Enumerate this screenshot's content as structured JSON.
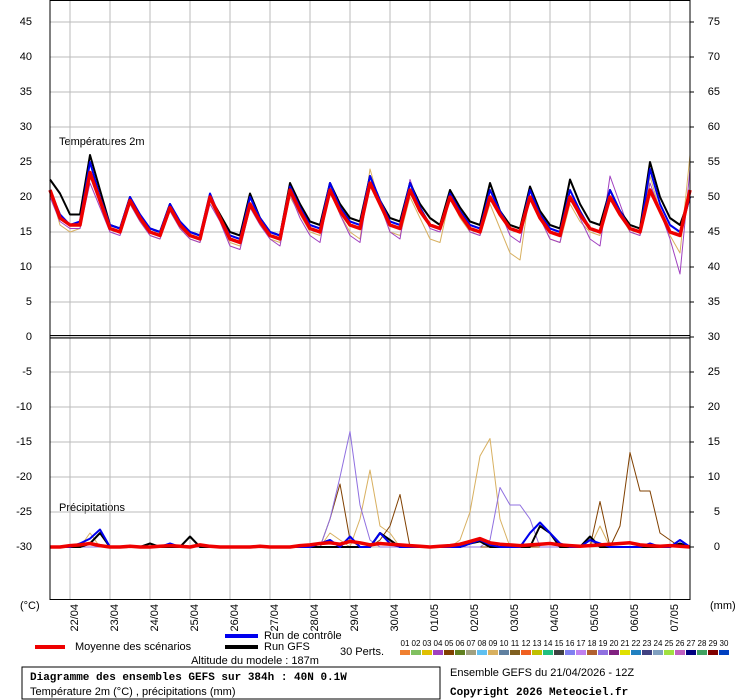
{
  "chart_data": [
    {
      "type": "line",
      "title": "Températures 2m",
      "ylabel": "(°C)",
      "xlim": [
        0,
        384
      ],
      "xticks": [
        {
          "value": 12,
          "label": "22/04"
        },
        {
          "value": 36,
          "label": "23/04"
        },
        {
          "value": 60,
          "label": "24/04"
        },
        {
          "value": 84,
          "label": "25/04"
        },
        {
          "value": 108,
          "label": "26/04"
        },
        {
          "value": 132,
          "label": "27/04"
        },
        {
          "value": 156,
          "label": "28/04"
        },
        {
          "value": 180,
          "label": "29/04"
        },
        {
          "value": 204,
          "label": "30/04"
        },
        {
          "value": 228,
          "label": "01/05"
        },
        {
          "value": 252,
          "label": "02/05"
        },
        {
          "value": 276,
          "label": "03/05"
        },
        {
          "value": 300,
          "label": "04/05"
        },
        {
          "value": 324,
          "label": "05/05"
        },
        {
          "value": 348,
          "label": "06/05"
        },
        {
          "value": 372,
          "label": "07/05"
        }
      ],
      "ylim": [
        0,
        48
      ],
      "yticks": [
        5,
        10,
        15,
        20,
        25,
        30,
        35,
        40,
        45
      ],
      "y2lim": [
        30,
        78
      ],
      "y2ticks": [
        35,
        40,
        45,
        50,
        55,
        60,
        65,
        70,
        75
      ],
      "grid": true,
      "x": [
        0,
        6,
        12,
        18,
        24,
        30,
        36,
        42,
        48,
        54,
        60,
        66,
        72,
        78,
        84,
        90,
        96,
        102,
        108,
        114,
        120,
        126,
        132,
        138,
        144,
        150,
        156,
        162,
        168,
        174,
        180,
        186,
        192,
        198,
        204,
        210,
        216,
        222,
        228,
        234,
        240,
        246,
        252,
        258,
        264,
        270,
        276,
        282,
        288,
        294,
        300,
        306,
        312,
        318,
        324,
        330,
        336,
        342,
        348,
        354,
        360,
        366,
        372,
        378,
        384
      ],
      "series": [
        {
          "name": "Moyenne des scénarios",
          "color": "#ee0000",
          "values": [
            21,
            17,
            16,
            16,
            23.5,
            19.5,
            15.5,
            15,
            19.5,
            17,
            15,
            14.5,
            18.5,
            16,
            14.5,
            14,
            20,
            17,
            14,
            13.5,
            19,
            16.5,
            14.5,
            14,
            21,
            18,
            15.5,
            15,
            21,
            18,
            16,
            15.5,
            22,
            19,
            16,
            15.5,
            21,
            18,
            16,
            15.5,
            20,
            17.5,
            15.5,
            15,
            20,
            17.5,
            15.5,
            15,
            20,
            17,
            15,
            14.5,
            20,
            17.5,
            15.5,
            15,
            20,
            17.5,
            15.5,
            15,
            21,
            18,
            15,
            14.5,
            21
          ]
        },
        {
          "name": "Run de contrôle",
          "color": "#0000ee",
          "values": [
            21,
            17.5,
            16,
            16.5,
            25,
            20,
            16,
            15.5,
            20,
            17.5,
            15.5,
            15,
            19,
            16.5,
            15,
            14.5,
            20.5,
            17,
            14.5,
            14,
            20,
            17,
            15,
            14.5,
            21.5,
            18.5,
            16,
            15.5,
            22,
            18.5,
            16.5,
            16,
            23,
            19.5,
            16.5,
            16,
            22,
            18.5,
            16,
            15.5,
            20.5,
            18,
            16,
            15.5,
            21,
            18,
            15.5,
            15,
            21,
            17.5,
            15.5,
            15,
            21,
            18,
            15.5,
            15,
            21,
            18,
            15.5,
            15,
            24,
            19,
            16,
            15,
            20
          ]
        },
        {
          "name": "Run GFS",
          "color": "#000000",
          "values": [
            22.5,
            20.5,
            17.5,
            17.5,
            26,
            21,
            16,
            15.5,
            20,
            17,
            15.5,
            15,
            19,
            16,
            15,
            14.5,
            20,
            17.5,
            15,
            14.5,
            20.5,
            17,
            15,
            14.5,
            22,
            19,
            16.5,
            16,
            22,
            19,
            17,
            16.5,
            23,
            19.5,
            17,
            16.5,
            22,
            19,
            17,
            16,
            21,
            18.5,
            16.5,
            16,
            22,
            18,
            16,
            15.5,
            21.5,
            18,
            16,
            15.5,
            22.5,
            19,
            16.5,
            16,
            21,
            18,
            16,
            15.5,
            25,
            20,
            17,
            16,
            20
          ]
        },
        {
          "name": "04",
          "color": "#a040c0",
          "values": [
            20,
            16.5,
            15.5,
            15.5,
            22,
            18.5,
            15,
            14.5,
            19,
            16.5,
            14.5,
            14,
            18,
            15.5,
            14,
            13.5,
            19,
            16.5,
            13,
            12.5,
            18.5,
            16,
            14,
            13,
            20.5,
            17,
            14.5,
            13.5,
            21.5,
            17.5,
            14.5,
            13.5,
            23,
            19,
            15,
            14,
            22.5,
            18.5,
            15.5,
            15,
            21,
            18,
            15,
            14.5,
            22,
            18,
            14.5,
            13.5,
            21,
            17,
            14,
            13.5,
            20,
            17,
            14,
            13,
            23,
            19,
            15,
            14.5,
            22,
            18,
            14,
            9,
            24
          ]
        },
        {
          "name": "09",
          "color": "#d8b060",
          "values": [
            21,
            16,
            15,
            15.5,
            23,
            19,
            15.5,
            15,
            19,
            16.5,
            14.5,
            14,
            18,
            15.5,
            14,
            13.5,
            19.5,
            16.5,
            13.5,
            13,
            19,
            16.5,
            14,
            13.5,
            20,
            17.5,
            15,
            14.5,
            21,
            17.5,
            15,
            14,
            24,
            19,
            15,
            14.5,
            20,
            17,
            14,
            13.5,
            20,
            17,
            15,
            14.5,
            19,
            15.5,
            12,
            11,
            21,
            17,
            14,
            13.5,
            19,
            16.5,
            15,
            14.5,
            21,
            17.5,
            15,
            14.5,
            23,
            18,
            14.5,
            12,
            26
          ]
        }
      ]
    },
    {
      "type": "line",
      "title": "Précipitations",
      "y2label": "(mm)",
      "xlim": [
        0,
        384
      ],
      "ylim": [
        -37.5,
        0
      ],
      "yticks": [
        -30,
        -25,
        -20,
        -15,
        -10,
        -5,
        0
      ],
      "y2lim": [
        -7.5,
        30
      ],
      "y2ticks": [
        0,
        5,
        10,
        15,
        20,
        25,
        30
      ],
      "grid": true,
      "x": [
        0,
        6,
        12,
        18,
        24,
        30,
        36,
        42,
        48,
        54,
        60,
        66,
        72,
        78,
        84,
        90,
        96,
        102,
        108,
        114,
        120,
        126,
        132,
        138,
        144,
        150,
        156,
        162,
        168,
        174,
        180,
        186,
        192,
        198,
        204,
        210,
        216,
        222,
        228,
        234,
        240,
        246,
        252,
        258,
        264,
        270,
        276,
        282,
        288,
        294,
        300,
        306,
        312,
        318,
        324,
        330,
        336,
        342,
        348,
        354,
        360,
        366,
        372,
        378,
        384
      ],
      "series": [
        {
          "name": "Moyenne des scénarios",
          "color": "#ee0000",
          "axis": "y2",
          "values": [
            0,
            0,
            0.2,
            0.3,
            0.5,
            0.2,
            0,
            0,
            0.1,
            0,
            0,
            0.1,
            0.2,
            0.1,
            0,
            0.3,
            0.1,
            0,
            0,
            0,
            0,
            0.1,
            0,
            0,
            0,
            0.2,
            0.3,
            0.5,
            0.6,
            0.4,
            0.8,
            0.6,
            0.3,
            0.5,
            0.4,
            0.3,
            0.2,
            0.1,
            0,
            0.1,
            0.2,
            0.4,
            0.8,
            1.2,
            0.6,
            0.4,
            0.3,
            0.2,
            0.3,
            0.4,
            0.5,
            0.3,
            0.2,
            0.1,
            0.2,
            0.3,
            0.4,
            0.5,
            0.6,
            0.3,
            0.2,
            0.1,
            0.2,
            0.1,
            0
          ]
        },
        {
          "name": "Run de contrôle",
          "color": "#0000ee",
          "axis": "y2",
          "values": [
            0,
            0,
            0,
            0.5,
            1.2,
            2.5,
            0,
            0,
            0,
            0,
            0,
            0,
            0.5,
            0,
            0,
            0.3,
            0,
            0,
            0,
            0,
            0,
            0,
            0,
            0,
            0,
            0,
            0,
            0.5,
            1,
            0,
            1.5,
            0,
            0,
            2,
            0.5,
            0,
            0,
            0,
            0,
            0,
            0,
            0,
            0.5,
            1,
            0.3,
            0,
            0,
            0,
            2,
            3.5,
            2,
            0.5,
            0,
            0,
            1,
            0.5,
            0,
            0,
            0,
            0,
            0.5,
            0,
            0,
            1,
            0
          ]
        },
        {
          "name": "Run GFS",
          "color": "#000000",
          "axis": "y2",
          "values": [
            0,
            0,
            0,
            0,
            0.5,
            2,
            0,
            0,
            0,
            0,
            0.5,
            0,
            0,
            0,
            1.5,
            0,
            0,
            0,
            0,
            0,
            0,
            0,
            0,
            0,
            0,
            0,
            0,
            0,
            0,
            0,
            0,
            0,
            0,
            2,
            1,
            0,
            0,
            0,
            0,
            0,
            0,
            0,
            0.5,
            0.8,
            0,
            0,
            0,
            0,
            0,
            3,
            2,
            0,
            0,
            0,
            1.5,
            0,
            0,
            0,
            0,
            0,
            0,
            0,
            0,
            0.5,
            0
          ]
        },
        {
          "name": "19",
          "color": "#9070e0",
          "axis": "y2",
          "values": [
            0,
            0,
            0,
            0,
            0,
            0,
            0,
            0,
            0,
            0,
            0,
            0,
            0,
            0,
            0,
            0,
            0,
            0,
            0,
            0,
            0,
            0,
            0,
            0,
            0,
            0,
            0,
            0,
            4,
            10,
            16.5,
            6,
            1,
            0,
            0,
            0,
            0,
            0,
            0,
            0,
            0,
            0,
            0,
            0,
            1,
            8.5,
            6,
            6,
            4,
            0,
            0,
            0,
            0,
            0,
            1,
            0,
            0,
            0,
            0,
            0,
            0,
            0,
            0,
            0,
            0
          ]
        },
        {
          "name": "05",
          "color": "#804000",
          "axis": "y2",
          "values": [
            0,
            0,
            0,
            0,
            0,
            0,
            0,
            0,
            0,
            0,
            0,
            0,
            0,
            0,
            0,
            0,
            0,
            0,
            0,
            0,
            0,
            0,
            0,
            0,
            0,
            0,
            0,
            0,
            4,
            9,
            1,
            0,
            0,
            1,
            3,
            7.5,
            0,
            0,
            0,
            0,
            0,
            0,
            0,
            0,
            0,
            0,
            0,
            0,
            0,
            0,
            0,
            0,
            0,
            0,
            0,
            6.5,
            0,
            3,
            13.5,
            8,
            8,
            2,
            1,
            0,
            0
          ]
        },
        {
          "name": "09",
          "color": "#d8b060",
          "axis": "y2",
          "values": [
            0,
            0,
            0,
            0,
            2,
            0,
            0,
            0,
            0,
            0,
            0,
            0,
            0,
            0,
            0,
            0,
            0,
            0,
            0,
            0,
            0,
            0,
            0,
            0,
            0,
            0,
            0,
            0,
            2,
            1,
            0,
            4,
            11,
            3,
            2,
            0,
            0,
            0,
            0,
            0,
            0,
            1,
            5,
            13,
            15.5,
            4,
            0,
            0,
            0,
            0,
            0,
            0,
            0,
            0,
            0,
            3,
            0,
            0,
            0,
            0,
            0,
            0,
            0,
            0,
            0
          ]
        }
      ]
    }
  ],
  "legend": {
    "perturbations_label": "30 Perts.",
    "altitude": "Altitude du modele : 187m",
    "perturbations": [
      {
        "name": "01",
        "color": "#f08030"
      },
      {
        "name": "02",
        "color": "#80c060"
      },
      {
        "name": "03",
        "color": "#e0c000"
      },
      {
        "name": "04",
        "color": "#a040c0"
      },
      {
        "name": "05",
        "color": "#804000"
      },
      {
        "name": "06",
        "color": "#608020"
      },
      {
        "name": "07",
        "color": "#a0a080"
      },
      {
        "name": "08",
        "color": "#60c0f0"
      },
      {
        "name": "09",
        "color": "#d8b060"
      },
      {
        "name": "10",
        "color": "#6080a0"
      },
      {
        "name": "11",
        "color": "#806020"
      },
      {
        "name": "12",
        "color": "#f06020"
      },
      {
        "name": "13",
        "color": "#c0c000"
      },
      {
        "name": "14",
        "color": "#20c080"
      },
      {
        "name": "15",
        "color": "#404040"
      },
      {
        "name": "16",
        "color": "#8080f0"
      },
      {
        "name": "17",
        "color": "#c080f0"
      },
      {
        "name": "18",
        "color": "#b06030"
      },
      {
        "name": "19",
        "color": "#9070e0"
      },
      {
        "name": "20",
        "color": "#802080"
      },
      {
        "name": "21",
        "color": "#e0e000"
      },
      {
        "name": "22",
        "color": "#2080c0"
      },
      {
        "name": "23",
        "color": "#404080"
      },
      {
        "name": "24",
        "color": "#80a0c0"
      },
      {
        "name": "25",
        "color": "#a0e040"
      },
      {
        "name": "26",
        "color": "#c060c0"
      },
      {
        "name": "27",
        "color": "#000080"
      },
      {
        "name": "28",
        "color": "#40a060"
      },
      {
        "name": "29",
        "color": "#800000"
      },
      {
        "name": "30",
        "color": "#0040c0"
      }
    ]
  },
  "footer": {
    "title": "Diagramme des ensembles GEFS sur 384h : 40N 0.1W",
    "subtitle": "Température 2m (°C) , précipitations (mm)",
    "run": "Ensemble GEFS du 21/04/2026 - 12Z",
    "copyright": "Copyright 2026 Meteociel.fr"
  }
}
